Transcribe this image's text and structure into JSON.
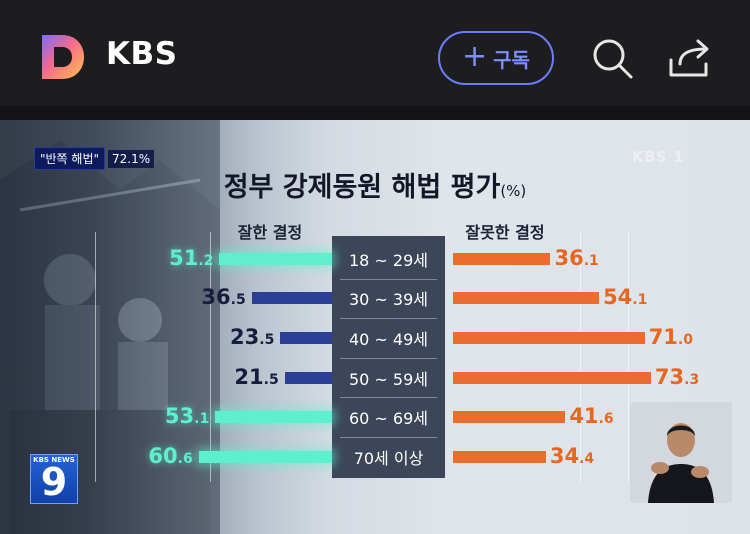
{
  "header": {
    "channel_name": "KBS",
    "subscribe_plus": "+",
    "subscribe_label": "구독",
    "icons": [
      "d-logo-icon",
      "search-icon",
      "share-icon"
    ],
    "accent_color": "#6b7dff"
  },
  "video": {
    "tag_label": "\"반쪽 해법\"",
    "tag_percent": "72.1%",
    "broadcaster_bug": "KBS 1",
    "news_badge_small": "KBS NEWS",
    "news_badge_number": "9",
    "chart_data": {
      "type": "bar",
      "title": "정부 강제동원 해법 평가",
      "title_unit": "(%)",
      "categories": [
        "18 ~ 29세",
        "30 ~ 39세",
        "40 ~ 49세",
        "50 ~ 59세",
        "60 ~ 69세",
        "70세 이상"
      ],
      "series": [
        {
          "name": "잘한 결정",
          "values": [
            51.2,
            36.5,
            23.5,
            21.5,
            53.1,
            60.6
          ],
          "colors": [
            "#5ef0ce",
            "#2b3f95",
            "#2b3f95",
            "#2b3f95",
            "#5ef0ce",
            "#5ef0ce"
          ]
        },
        {
          "name": "잘못한 결정",
          "values": [
            36.1,
            54.1,
            71.0,
            73.3,
            41.6,
            34.4
          ],
          "colors": [
            "#ec6b2f",
            "#ec6b2f",
            "#ec6b2f",
            "#ec6b2f",
            "#ec6b2f",
            "#ec6b2f"
          ]
        }
      ],
      "value_labels_left": [
        [
          "51",
          ".2"
        ],
        [
          "36",
          ".5"
        ],
        [
          "23",
          ".5"
        ],
        [
          "21",
          ".5"
        ],
        [
          "53",
          ".1"
        ],
        [
          "60",
          ".6"
        ]
      ],
      "value_labels_right": [
        [
          "36",
          ".1"
        ],
        [
          "54",
          ".1"
        ],
        [
          "71",
          ".0"
        ],
        [
          "73",
          ".3"
        ],
        [
          "41",
          ".6"
        ],
        [
          "34",
          ".4"
        ]
      ],
      "grid": true,
      "legend": "column headers above bars"
    }
  }
}
